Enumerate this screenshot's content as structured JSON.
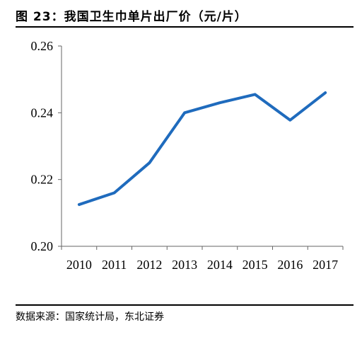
{
  "figure": {
    "title": "图 23：我国卫生巾单片出厂价（元/片）",
    "source": "数据来源：国家统计局，东北证券"
  },
  "colors": {
    "line": "#1f6bbd",
    "axis": "#666666"
  },
  "chart_data": {
    "type": "line",
    "title": "",
    "xlabel": "",
    "ylabel": "",
    "categories": [
      "2010",
      "2011",
      "2012",
      "2013",
      "2014",
      "2015",
      "2016",
      "2017"
    ],
    "series": [
      {
        "values": [
          0.2125,
          0.216,
          0.225,
          0.24,
          0.243,
          0.2455,
          0.2378,
          0.246
        ]
      }
    ],
    "ylim": [
      0.2,
      0.26
    ],
    "yticks": [
      "0.20",
      "0.22",
      "0.24",
      "0.26"
    ],
    "grid": false,
    "legend": "none"
  }
}
